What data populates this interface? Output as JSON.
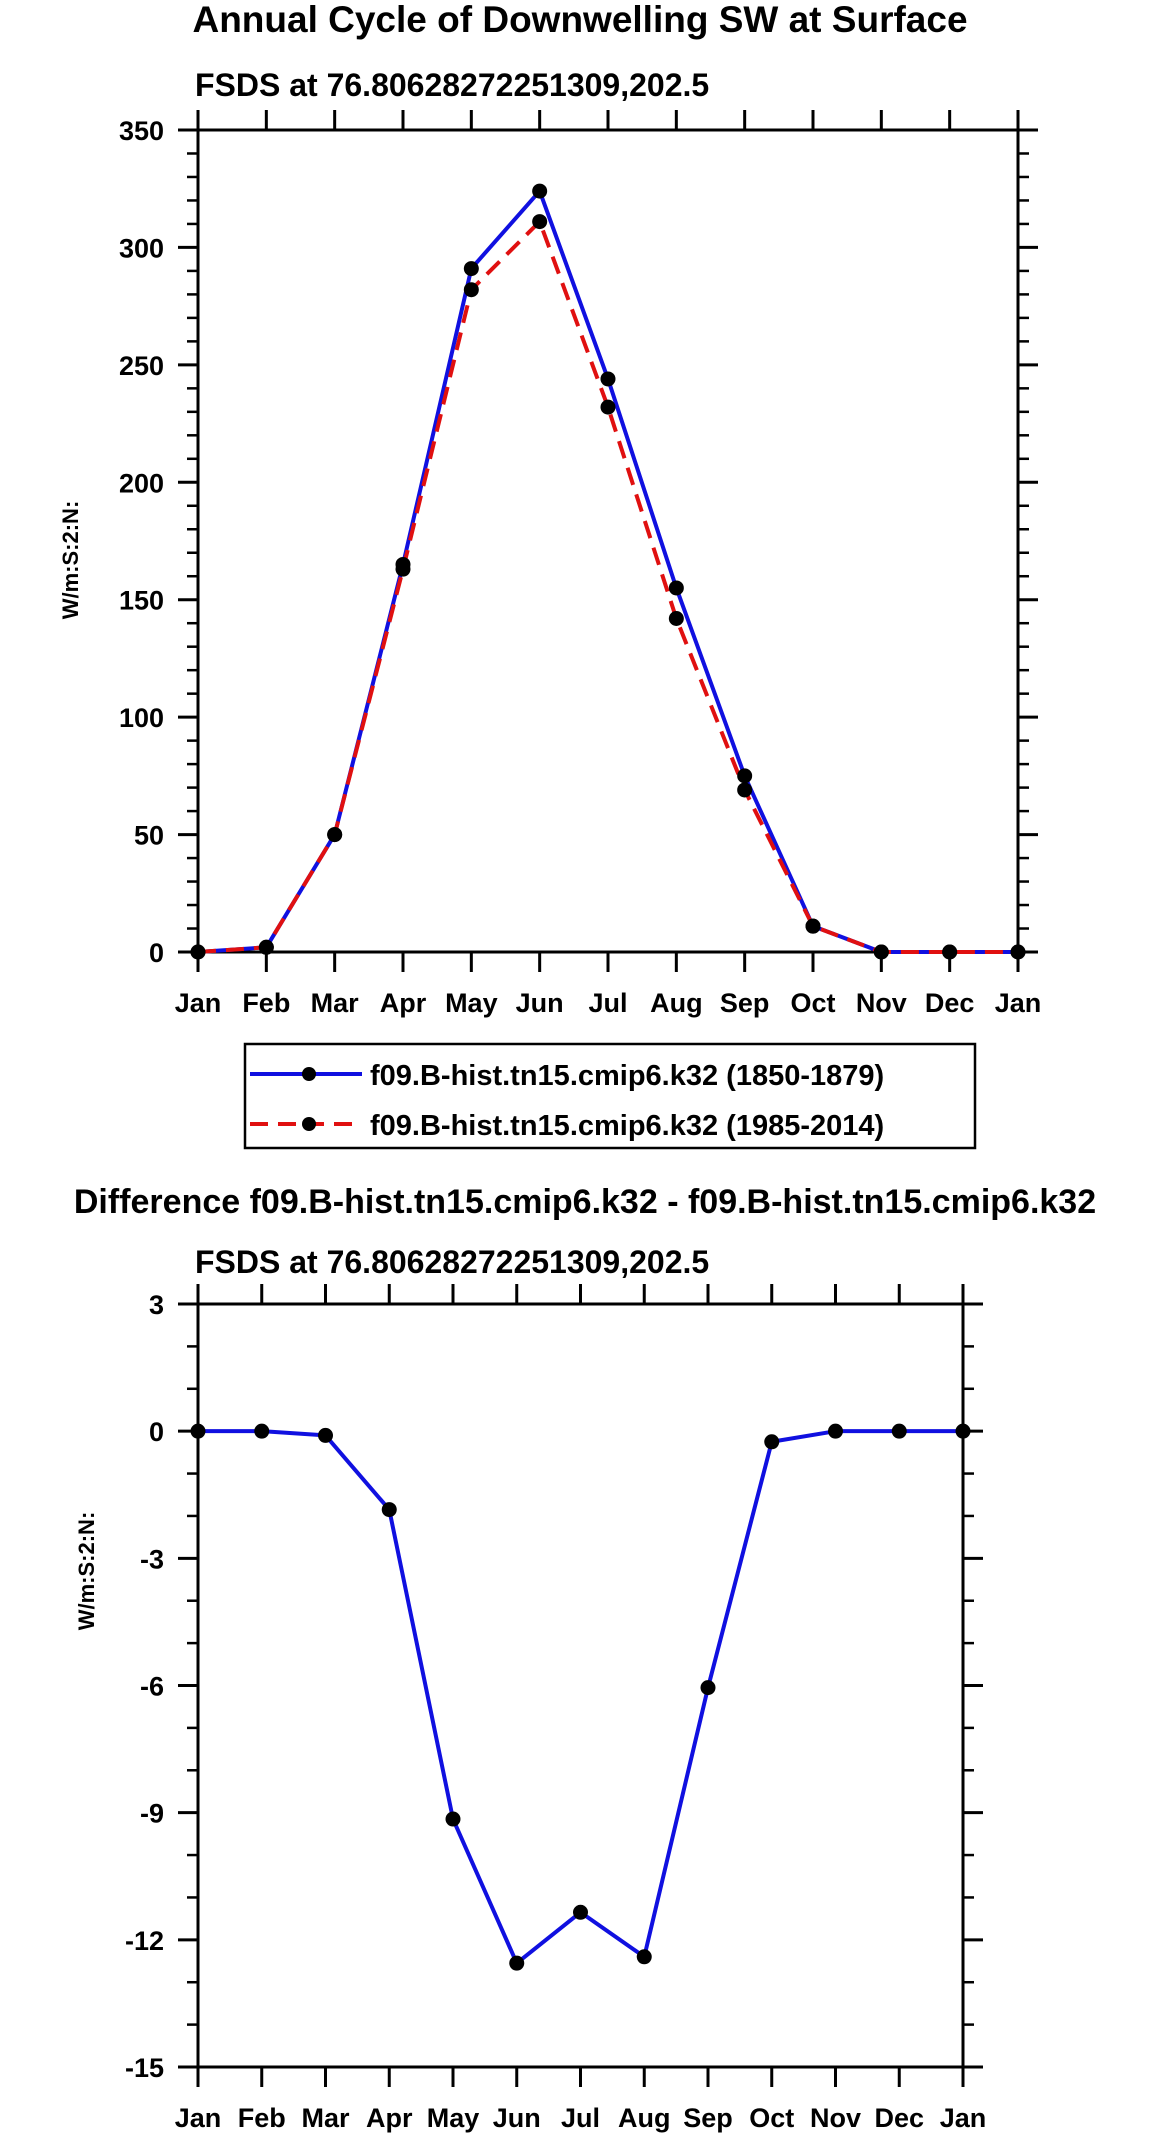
{
  "chart_data": [
    {
      "type": "line",
      "title": "Annual Cycle of Downwelling SW at Surface",
      "subtitle": "FSDS at 76.80628272251309,202.5",
      "xlabel": "",
      "ylabel": "W/m:S:2:N:",
      "categories": [
        "Jan",
        "Feb",
        "Mar",
        "Apr",
        "May",
        "Jun",
        "Jul",
        "Aug",
        "Sep",
        "Oct",
        "Nov",
        "Dec",
        "Jan"
      ],
      "ylim": [
        0,
        350
      ],
      "yticks": [
        0,
        50,
        100,
        150,
        200,
        250,
        300,
        350
      ],
      "grid": false,
      "series": [
        {
          "name": "f09.B-hist.tn15.cmip6.k32 (1850-1879)",
          "color": "#1010e0",
          "style": "solid",
          "values": [
            0,
            2,
            50,
            165,
            291,
            324,
            244,
            155,
            75,
            11,
            0,
            0,
            0
          ]
        },
        {
          "name": "f09.B-hist.tn15.cmip6.k32 (1985-2014)",
          "color": "#e01010",
          "style": "dashed",
          "values": [
            0,
            2,
            50,
            163,
            282,
            311,
            232,
            142,
            69,
            11,
            0,
            0,
            0
          ]
        }
      ],
      "legend": "below"
    },
    {
      "type": "line",
      "title": "Difference f09.B-hist.tn15.cmip6.k32 - f09.B-hist.tn15.cmip6.k32",
      "subtitle": "FSDS at 76.80628272251309,202.5",
      "xlabel": "",
      "ylabel": "W/m:S:2:N:",
      "categories": [
        "Jan",
        "Feb",
        "Mar",
        "Apr",
        "May",
        "Jun",
        "Jul",
        "Aug",
        "Sep",
        "Oct",
        "Nov",
        "Dec",
        "Jan"
      ],
      "ylim": [
        -15,
        3
      ],
      "yticks": [
        3,
        0,
        -3,
        -6,
        -9,
        -12,
        -15
      ],
      "grid": false,
      "series": [
        {
          "name": "Difference",
          "color": "#1010e0",
          "style": "solid",
          "values": [
            0,
            0,
            -0.1,
            -1.85,
            -9.15,
            -12.55,
            -11.35,
            -12.4,
            -6.05,
            -0.25,
            0,
            0,
            0
          ]
        }
      ]
    }
  ]
}
